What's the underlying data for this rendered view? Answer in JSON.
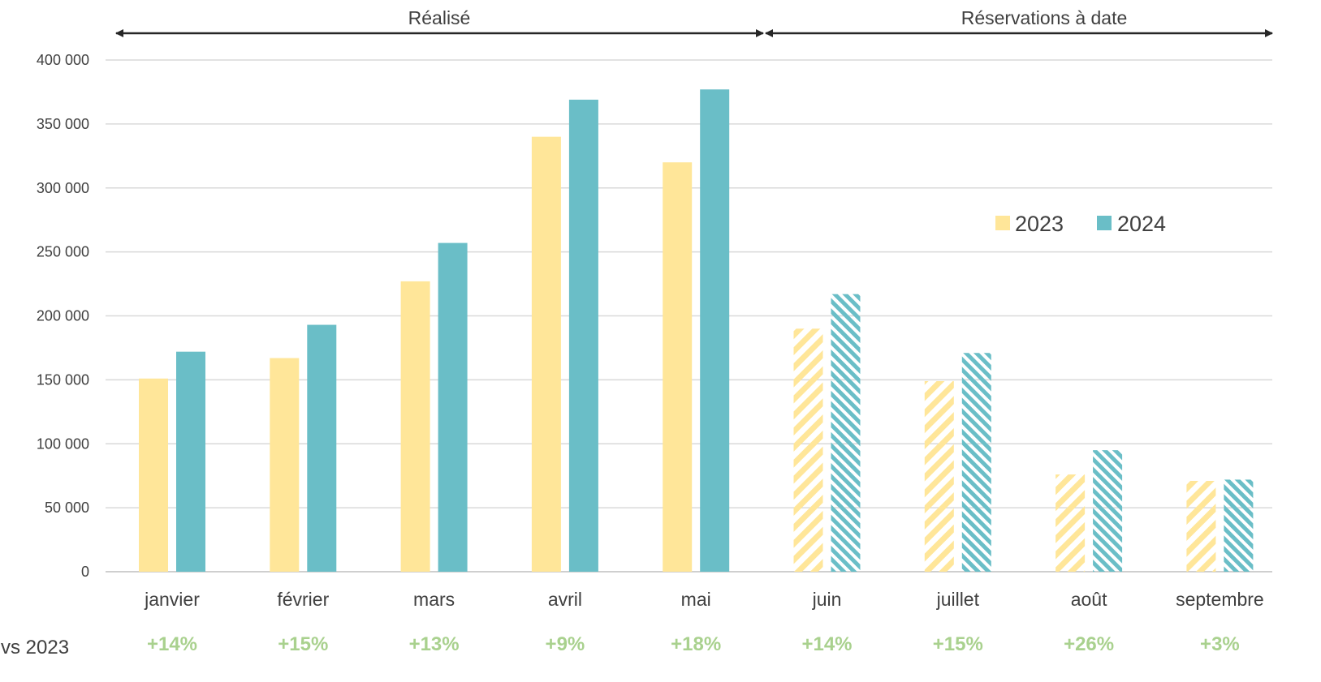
{
  "chart_data": {
    "type": "bar",
    "categories": [
      "janvier",
      "février",
      "mars",
      "avril",
      "mai",
      "juin",
      "juillet",
      "août",
      "septembre"
    ],
    "series": [
      {
        "name": "2023",
        "color": "#FFE699",
        "values": [
          151000,
          167000,
          227000,
          340000,
          320000,
          190000,
          149000,
          76000,
          71000
        ]
      },
      {
        "name": "2024",
        "color": "#6ABEC7",
        "values": [
          172000,
          193000,
          257000,
          369000,
          377000,
          217000,
          171000,
          95000,
          72000
        ]
      }
    ],
    "ylim": [
      0,
      400000
    ],
    "yticks": [
      0,
      50000,
      100000,
      150000,
      200000,
      250000,
      300000,
      350000,
      400000
    ],
    "ytick_labels": [
      "0",
      "50 000",
      "100 000",
      "150 000",
      "200 000",
      "250 000",
      "300 000",
      "350 000",
      "400 000"
    ],
    "hatched_from_index": 5,
    "grid": true,
    "legend_position": "right",
    "periods": [
      {
        "label": "Réalisé",
        "from_index": 0,
        "to_index": 4
      },
      {
        "label": "Réservations à date",
        "from_index": 5,
        "to_index": 8
      }
    ],
    "growth_row": {
      "label": "vs 2023",
      "color": "#A9D18E",
      "values": [
        "+14%",
        "+15%",
        "+13%",
        "+9%",
        "+18%",
        "+14%",
        "+15%",
        "+26%",
        "+3%"
      ]
    }
  }
}
